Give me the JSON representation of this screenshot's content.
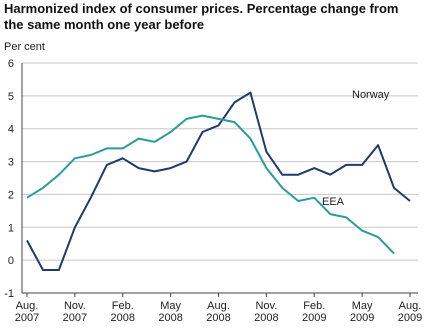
{
  "chart_data": {
    "type": "line",
    "title": [
      "Harmonized index of consumer prices. Percentage change from",
      "the same month one year before"
    ],
    "y_label": "Per cent",
    "categories": [
      [
        "Aug.",
        "2007"
      ],
      null,
      null,
      [
        "Nov.",
        "2007"
      ],
      null,
      null,
      [
        "Feb.",
        "2008"
      ],
      null,
      null,
      [
        "May",
        "2008"
      ],
      null,
      null,
      [
        "Aug.",
        "2008"
      ],
      null,
      null,
      [
        "Nov.",
        "2008"
      ],
      null,
      null,
      [
        "Feb.",
        "2009"
      ],
      null,
      null,
      [
        "May",
        "2009"
      ],
      null,
      null,
      [
        "Aug.",
        "2009"
      ]
    ],
    "series": [
      {
        "name": "Norway",
        "color": "#1f3a6e",
        "values": [
          0.6,
          -0.3,
          -0.3,
          1.0,
          1.9,
          2.9,
          3.1,
          2.8,
          2.7,
          2.8,
          3.0,
          3.9,
          4.1,
          4.8,
          5.1,
          3.3,
          2.6,
          2.6,
          2.8,
          2.6,
          2.9,
          2.9,
          3.5,
          2.2,
          1.8
        ]
      },
      {
        "name": "EEA",
        "color": "#2a9d9b",
        "values": [
          1.9,
          2.2,
          2.6,
          3.1,
          3.2,
          3.4,
          3.4,
          3.7,
          3.6,
          3.9,
          4.3,
          4.4,
          4.3,
          4.2,
          3.7,
          2.8,
          2.2,
          1.8,
          1.9,
          1.4,
          1.3,
          0.9,
          0.7,
          0.2,
          null
        ]
      }
    ],
    "ylim": [
      -1,
      6
    ],
    "yticks": [
      -1,
      0,
      1,
      2,
      3,
      4,
      5,
      6
    ],
    "grid": true
  }
}
